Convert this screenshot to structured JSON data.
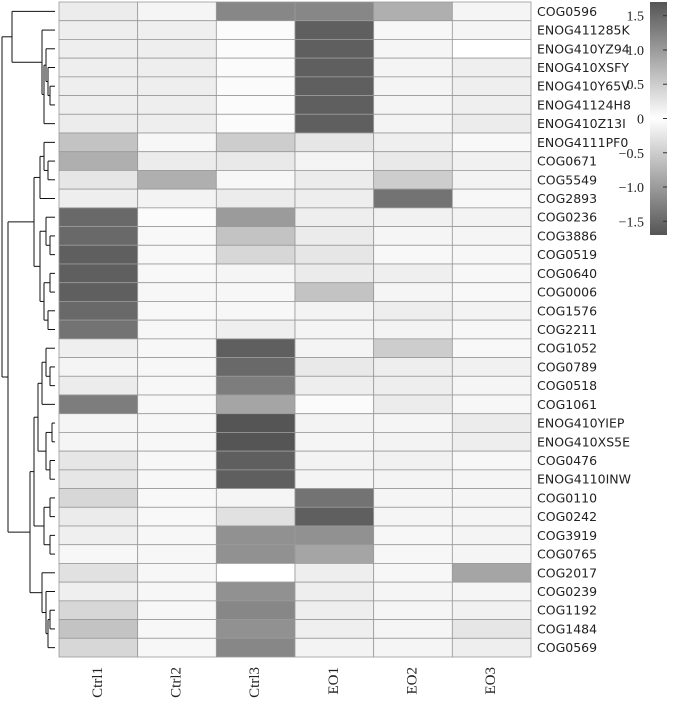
{
  "chart_data": {
    "type": "heatmap",
    "title": "",
    "columns": [
      "Ctrl1",
      "Ctrl2",
      "Ctrl3",
      "EO1",
      "EO2",
      "EO3"
    ],
    "rows": [
      "COG0596",
      "ENOG411285K",
      "ENOG410YZ94",
      "ENOG410XSFY",
      "ENOG410Y65V",
      "ENOG41124H8",
      "ENOG410Z13I",
      "ENOG4111PF0",
      "COG0671",
      "COG5549",
      "COG2893",
      "COG0236",
      "COG3886",
      "COG0519",
      "COG0640",
      "COG0006",
      "COG1576",
      "COG2211",
      "COG1052",
      "COG0789",
      "COG0518",
      "COG1061",
      "ENOG410YIEP",
      "ENOG410XS5E",
      "COG0476",
      "ENOG4110INW",
      "COG0110",
      "COG0242",
      "COG3919",
      "COG0765",
      "COG2017",
      "COG0239",
      "COG1192",
      "COG1484",
      "COG0569"
    ],
    "values": [
      [
        0.3,
        0.9,
        -1.2,
        -1.2,
        -0.8,
        0.9
      ],
      [
        0.4,
        0.5,
        1.3,
        -1.6,
        1.0,
        0.9
      ],
      [
        0.4,
        0.4,
        1.3,
        -1.6,
        0.9,
        0.0
      ],
      [
        0.4,
        0.4,
        1.3,
        -1.6,
        0.8,
        0.5
      ],
      [
        0.4,
        0.4,
        1.3,
        -1.6,
        0.8,
        0.5
      ],
      [
        0.4,
        0.4,
        1.3,
        -1.6,
        0.8,
        0.5
      ],
      [
        0.3,
        0.4,
        1.3,
        -1.6,
        0.8,
        0.3
      ],
      [
        -0.6,
        1.0,
        -0.5,
        0.1,
        0.5,
        1.1
      ],
      [
        -0.8,
        0.3,
        0.2,
        0.8,
        0.2,
        0.6
      ],
      [
        0.1,
        -0.8,
        1.0,
        0.3,
        -0.5,
        0.7
      ],
      [
        0.4,
        0.7,
        0.3,
        0.4,
        -1.4,
        1.0
      ],
      [
        -1.5,
        1.3,
        -1.0,
        0.4,
        0.6,
        0.7
      ],
      [
        -1.5,
        1.1,
        -0.6,
        -0.2,
        0.9,
        0.9
      ],
      [
        -1.6,
        1.1,
        -0.4,
        0.1,
        1.1,
        1.0
      ],
      [
        -1.6,
        1.1,
        0.9,
        -0.2,
        0.5,
        1.0
      ],
      [
        -1.6,
        1.0,
        1.0,
        -0.6,
        0.9,
        1.1
      ],
      [
        -1.5,
        1.1,
        1.0,
        0.7,
        0.4,
        0.7
      ],
      [
        -1.4,
        1.0,
        0.5,
        0.8,
        0.7,
        1.0
      ],
      [
        0.5,
        1.0,
        -1.6,
        0.8,
        -0.5,
        1.1
      ],
      [
        0.8,
        1.0,
        -1.5,
        0.2,
        0.4,
        0.6
      ],
      [
        0.3,
        1.0,
        -1.3,
        0.4,
        0.4,
        0.9
      ],
      [
        -1.3,
        1.0,
        -0.9,
        1.3,
        0.3,
        1.0
      ],
      [
        0.9,
        1.0,
        -1.7,
        0.7,
        0.9,
        0.3
      ],
      [
        0.9,
        1.0,
        -1.7,
        0.9,
        0.7,
        0.4
      ],
      [
        0.1,
        1.0,
        -1.6,
        0.7,
        0.6,
        1.0
      ],
      [
        0.1,
        1.0,
        -1.6,
        0.8,
        0.8,
        0.9
      ],
      [
        -0.4,
        1.1,
        -0.1,
        -1.4,
        0.9,
        0.9
      ],
      [
        -0.2,
        1.1,
        -0.3,
        -1.6,
        0.9,
        0.9
      ],
      [
        0.5,
        1.0,
        -1.1,
        -1.1,
        1.0,
        0.8
      ],
      [
        1.0,
        1.0,
        -1.1,
        -0.9,
        1.0,
        0.9
      ],
      [
        -0.3,
        1.0,
        0.0,
        0.4,
        1.0,
        -0.9
      ],
      [
        0.5,
        1.0,
        -1.1,
        0.4,
        0.9,
        -0.1
      ],
      [
        -0.4,
        1.0,
        -1.2,
        0.4,
        0.9,
        0.6
      ],
      [
        -0.6,
        1.0,
        -1.1,
        0.5,
        0.9,
        0.1
      ],
      [
        -0.4,
        1.0,
        -1.2,
        0.7,
        0.9,
        0.4
      ]
    ],
    "color_scale": {
      "min": -1.7,
      "max": 1.7,
      "low_color": "#555555",
      "mid_color": "#ffffff",
      "high_color": "#ffffff",
      "ticks": [
        1.5,
        1.0,
        0.5,
        0,
        -0.5,
        -1.0,
        -1.5
      ],
      "tick_labels": [
        "1.5",
        "1.0",
        "0.5",
        "0",
        "−0.5",
        "−1.0",
        "−1.5"
      ]
    },
    "legend_position": "top-right",
    "row_dendrogram": true
  }
}
